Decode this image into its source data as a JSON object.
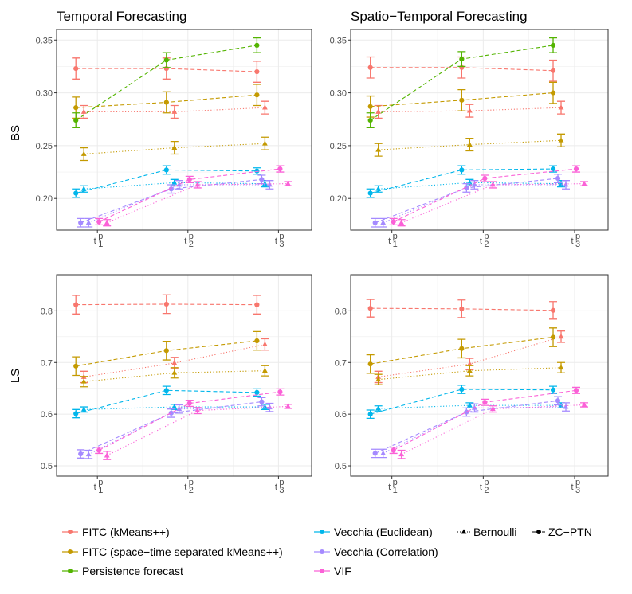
{
  "colors": {
    "fitc_kmeans": "#F8766D",
    "fitc_st": "#C49A00",
    "persistence": "#53B400",
    "vecchia_euclid": "#00B6EB",
    "vecchia_corr": "#A58AFF",
    "vif": "#FB61D7",
    "grid": "#ebebeb",
    "panel_border": "#333333"
  },
  "columns": [
    "Temporal Forecasting",
    "Spatio−Temporal Forecasting"
  ],
  "rows": [
    "BS",
    "LS"
  ],
  "legend": {
    "methods": [
      {
        "key": "fitc_kmeans",
        "label": "FITC (kMeans++)"
      },
      {
        "key": "fitc_st",
        "label": "FITC (space−time separated kMeans++)"
      },
      {
        "key": "persistence",
        "label": "Persistence forecast"
      },
      {
        "key": "vecchia_euclid",
        "label": "Vecchia (Euclidean)"
      },
      {
        "key": "vecchia_corr",
        "label": "Vecchia (Correlation)"
      },
      {
        "key": "vif",
        "label": "VIF"
      }
    ],
    "likelihoods": [
      {
        "key": "bernoulli",
        "label": "Bernoulli",
        "linetype": "dotted",
        "shape": "triangle"
      },
      {
        "key": "zcptn",
        "label": "ZC−PTN",
        "linetype": "dashed",
        "shape": "circle"
      }
    ]
  },
  "chart_data": [
    {
      "type": "line",
      "panel": "Temporal Forecasting / BS",
      "title": "Temporal Forecasting",
      "ylabel": "BS",
      "categories": [
        "t1p",
        "t2p",
        "t3p"
      ],
      "x_tick_labels": [
        "t",
        "t",
        "t"
      ],
      "x_subscripts": [
        "1",
        "2",
        "3"
      ],
      "x_superscripts": [
        "p",
        "p",
        "p"
      ],
      "ylim": [
        0.17,
        0.36
      ],
      "yticks": [
        0.2,
        0.25,
        0.3,
        0.35
      ],
      "ytick_labels": [
        "0.20",
        "0.25",
        "0.30",
        "0.35"
      ],
      "series": [
        {
          "method": "fitc_kmeans",
          "likelihood": "zcptn",
          "values": [
            0.323,
            0.323,
            0.32
          ],
          "errors": [
            0.01,
            0.01,
            0.01
          ]
        },
        {
          "method": "fitc_kmeans",
          "likelihood": "bernoulli",
          "values": [
            0.282,
            0.282,
            0.286
          ],
          "errors": [
            0.006,
            0.006,
            0.006
          ]
        },
        {
          "method": "fitc_st",
          "likelihood": "zcptn",
          "values": [
            0.286,
            0.291,
            0.298
          ],
          "errors": [
            0.01,
            0.01,
            0.01
          ]
        },
        {
          "method": "fitc_st",
          "likelihood": "bernoulli",
          "values": [
            0.242,
            0.248,
            0.252
          ],
          "errors": [
            0.006,
            0.006,
            0.006
          ]
        },
        {
          "method": "persistence",
          "likelihood": "zcptn",
          "values": [
            0.274,
            0.331,
            0.345
          ],
          "errors": [
            0.007,
            0.007,
            0.007
          ]
        },
        {
          "method": "vecchia_euclid",
          "likelihood": "zcptn",
          "values": [
            0.205,
            0.227,
            0.226
          ],
          "errors": [
            0.004,
            0.004,
            0.003
          ]
        },
        {
          "method": "vecchia_euclid",
          "likelihood": "bernoulli",
          "values": [
            0.209,
            0.215,
            0.214
          ],
          "errors": [
            0.003,
            0.003,
            0.003
          ]
        },
        {
          "method": "vecchia_corr",
          "likelihood": "zcptn",
          "values": [
            0.177,
            0.209,
            0.218
          ],
          "errors": [
            0.004,
            0.004,
            0.004
          ]
        },
        {
          "method": "vecchia_corr",
          "likelihood": "bernoulli",
          "values": [
            0.177,
            0.213,
            0.213
          ],
          "errors": [
            0.004,
            0.004,
            0.004
          ]
        },
        {
          "method": "vif",
          "likelihood": "zcptn",
          "values": [
            0.178,
            0.218,
            0.228
          ],
          "errors": [
            0.003,
            0.003,
            0.003
          ]
        },
        {
          "method": "vif",
          "likelihood": "bernoulli",
          "values": [
            0.177,
            0.213,
            0.214
          ],
          "errors": [
            0.003,
            0.003,
            0.002
          ]
        }
      ]
    },
    {
      "type": "line",
      "panel": "Spatio−Temporal Forecasting / BS",
      "title": "Spatio−Temporal Forecasting",
      "ylabel": "BS",
      "categories": [
        "t1p",
        "t2p",
        "t3p"
      ],
      "x_tick_labels": [
        "t",
        "t",
        "t"
      ],
      "x_subscripts": [
        "1",
        "2",
        "3"
      ],
      "x_superscripts": [
        "p",
        "p",
        "p"
      ],
      "ylim": [
        0.17,
        0.36
      ],
      "yticks": [
        0.2,
        0.25,
        0.3,
        0.35
      ],
      "ytick_labels": [
        "0.20",
        "0.25",
        "0.30",
        "0.35"
      ],
      "series": [
        {
          "method": "fitc_kmeans",
          "likelihood": "zcptn",
          "values": [
            0.324,
            0.324,
            0.321
          ],
          "errors": [
            0.01,
            0.01,
            0.01
          ]
        },
        {
          "method": "fitc_kmeans",
          "likelihood": "bernoulli",
          "values": [
            0.282,
            0.283,
            0.286
          ],
          "errors": [
            0.006,
            0.006,
            0.006
          ]
        },
        {
          "method": "fitc_st",
          "likelihood": "zcptn",
          "values": [
            0.287,
            0.293,
            0.3
          ],
          "errors": [
            0.01,
            0.01,
            0.01
          ]
        },
        {
          "method": "fitc_st",
          "likelihood": "bernoulli",
          "values": [
            0.246,
            0.251,
            0.255
          ],
          "errors": [
            0.006,
            0.006,
            0.006
          ]
        },
        {
          "method": "persistence",
          "likelihood": "zcptn",
          "values": [
            0.274,
            0.332,
            0.345
          ],
          "errors": [
            0.007,
            0.007,
            0.007
          ]
        },
        {
          "method": "vecchia_euclid",
          "likelihood": "zcptn",
          "values": [
            0.205,
            0.227,
            0.228
          ],
          "errors": [
            0.004,
            0.004,
            0.003
          ]
        },
        {
          "method": "vecchia_euclid",
          "likelihood": "bernoulli",
          "values": [
            0.209,
            0.215,
            0.214
          ],
          "errors": [
            0.003,
            0.003,
            0.003
          ]
        },
        {
          "method": "vecchia_corr",
          "likelihood": "zcptn",
          "values": [
            0.177,
            0.21,
            0.219
          ],
          "errors": [
            0.004,
            0.004,
            0.004
          ]
        },
        {
          "method": "vecchia_corr",
          "likelihood": "bernoulli",
          "values": [
            0.177,
            0.213,
            0.213
          ],
          "errors": [
            0.004,
            0.004,
            0.004
          ]
        },
        {
          "method": "vif",
          "likelihood": "zcptn",
          "values": [
            0.178,
            0.219,
            0.228
          ],
          "errors": [
            0.003,
            0.003,
            0.003
          ]
        },
        {
          "method": "vif",
          "likelihood": "bernoulli",
          "values": [
            0.177,
            0.213,
            0.214
          ],
          "errors": [
            0.003,
            0.003,
            0.002
          ]
        }
      ]
    },
    {
      "type": "line",
      "panel": "Temporal Forecasting / LS",
      "title": "",
      "ylabel": "LS",
      "categories": [
        "t1p",
        "t2p",
        "t3p"
      ],
      "x_tick_labels": [
        "t",
        "t",
        "t"
      ],
      "x_subscripts": [
        "1",
        "2",
        "3"
      ],
      "x_superscripts": [
        "p",
        "p",
        "p"
      ],
      "ylim": [
        0.48,
        0.87
      ],
      "yticks": [
        0.5,
        0.6,
        0.7,
        0.8
      ],
      "ytick_labels": [
        "0.5",
        "0.6",
        "0.7",
        "0.8"
      ],
      "series": [
        {
          "method": "fitc_kmeans",
          "likelihood": "zcptn",
          "values": [
            0.812,
            0.813,
            0.812
          ],
          "errors": [
            0.018,
            0.018,
            0.018
          ]
        },
        {
          "method": "fitc_kmeans",
          "likelihood": "bernoulli",
          "values": [
            0.672,
            0.699,
            0.735
          ],
          "errors": [
            0.011,
            0.011,
            0.011
          ]
        },
        {
          "method": "fitc_st",
          "likelihood": "zcptn",
          "values": [
            0.693,
            0.723,
            0.742
          ],
          "errors": [
            0.018,
            0.018,
            0.018
          ]
        },
        {
          "method": "fitc_st",
          "likelihood": "bernoulli",
          "values": [
            0.663,
            0.68,
            0.684
          ],
          "errors": [
            0.01,
            0.01,
            0.01
          ]
        },
        {
          "method": "vecchia_euclid",
          "likelihood": "zcptn",
          "values": [
            0.601,
            0.646,
            0.642
          ],
          "errors": [
            0.008,
            0.008,
            0.007
          ]
        },
        {
          "method": "vecchia_euclid",
          "likelihood": "bernoulli",
          "values": [
            0.609,
            0.614,
            0.614
          ],
          "errors": [
            0.005,
            0.005,
            0.005
          ]
        },
        {
          "method": "vecchia_corr",
          "likelihood": "zcptn",
          "values": [
            0.523,
            0.602,
            0.624
          ],
          "errors": [
            0.008,
            0.008,
            0.008
          ]
        },
        {
          "method": "vecchia_corr",
          "likelihood": "bernoulli",
          "values": [
            0.522,
            0.61,
            0.613
          ],
          "errors": [
            0.008,
            0.008,
            0.008
          ]
        },
        {
          "method": "vif",
          "likelihood": "zcptn",
          "values": [
            0.53,
            0.621,
            0.643
          ],
          "errors": [
            0.006,
            0.006,
            0.006
          ]
        },
        {
          "method": "vif",
          "likelihood": "bernoulli",
          "values": [
            0.52,
            0.607,
            0.615
          ],
          "errors": [
            0.008,
            0.006,
            0.004
          ]
        }
      ]
    },
    {
      "type": "line",
      "panel": "Spatio−Temporal Forecasting / LS",
      "title": "",
      "ylabel": "LS",
      "categories": [
        "t1p",
        "t2p",
        "t3p"
      ],
      "x_tick_labels": [
        "t",
        "t",
        "t"
      ],
      "x_subscripts": [
        "1",
        "2",
        "3"
      ],
      "x_superscripts": [
        "p",
        "p",
        "p"
      ],
      "ylim": [
        0.48,
        0.87
      ],
      "yticks": [
        0.5,
        0.6,
        0.7,
        0.8
      ],
      "ytick_labels": [
        "0.5",
        "0.6",
        "0.7",
        "0.8"
      ],
      "series": [
        {
          "method": "fitc_kmeans",
          "likelihood": "zcptn",
          "values": [
            0.805,
            0.804,
            0.801
          ],
          "errors": [
            0.017,
            0.017,
            0.017
          ]
        },
        {
          "method": "fitc_kmeans",
          "likelihood": "bernoulli",
          "values": [
            0.672,
            0.697,
            0.75
          ],
          "errors": [
            0.011,
            0.011,
            0.011
          ]
        },
        {
          "method": "fitc_st",
          "likelihood": "zcptn",
          "values": [
            0.697,
            0.727,
            0.749
          ],
          "errors": [
            0.018,
            0.018,
            0.018
          ]
        },
        {
          "method": "fitc_st",
          "likelihood": "bernoulli",
          "values": [
            0.667,
            0.684,
            0.69
          ],
          "errors": [
            0.01,
            0.01,
            0.01
          ]
        },
        {
          "method": "vecchia_euclid",
          "likelihood": "zcptn",
          "values": [
            0.6,
            0.648,
            0.647
          ],
          "errors": [
            0.008,
            0.008,
            0.007
          ]
        },
        {
          "method": "vecchia_euclid",
          "likelihood": "bernoulli",
          "values": [
            0.611,
            0.617,
            0.617
          ],
          "errors": [
            0.005,
            0.005,
            0.005
          ]
        },
        {
          "method": "vecchia_corr",
          "likelihood": "zcptn",
          "values": [
            0.524,
            0.604,
            0.626
          ],
          "errors": [
            0.008,
            0.008,
            0.008
          ]
        },
        {
          "method": "vecchia_corr",
          "likelihood": "bernoulli",
          "values": [
            0.524,
            0.612,
            0.614
          ],
          "errors": [
            0.008,
            0.008,
            0.008
          ]
        },
        {
          "method": "vif",
          "likelihood": "zcptn",
          "values": [
            0.53,
            0.623,
            0.646
          ],
          "errors": [
            0.006,
            0.006,
            0.006
          ]
        },
        {
          "method": "vif",
          "likelihood": "bernoulli",
          "values": [
            0.522,
            0.61,
            0.618
          ],
          "errors": [
            0.008,
            0.006,
            0.004
          ]
        }
      ]
    }
  ]
}
